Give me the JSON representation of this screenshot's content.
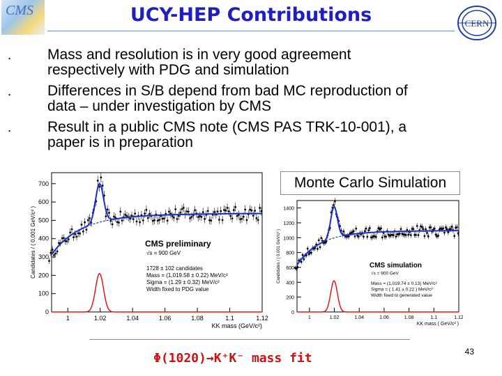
{
  "slide": {
    "title": "UCY-HEP Contributions",
    "logos": {
      "left_text": "CMS",
      "right_text": "CERN"
    },
    "bullets": [
      {
        "line1": "Mass and resolution is in very good agreement",
        "line2": "respectively with PDG and simulation"
      },
      {
        "line1": "Differences in S/B depend from bad MC reproduction of",
        "line2": "data – under investigation by CMS"
      },
      {
        "line1": "Result in a public CMS note (CMS PAS TRK-10-001), a",
        "line2": "paper is in preparation"
      }
    ],
    "mc_label": "Monte Carlo Simulation",
    "footer": "Φ(1020)→K⁺K⁻ mass fit",
    "page_number": "43",
    "colors": {
      "title": "#1f1fbf",
      "fit": "#1a2fd0",
      "signal": "#dd1a1a",
      "footer": "#cc1111"
    }
  },
  "chart_data": [
    {
      "type": "scatter",
      "title": "CMS preliminary",
      "xlabel": "KK mass (GeV/c²)",
      "ylabel": "Candidates / ( 0.001 GeV/c² )",
      "x_ticks": [
        "1",
        "1.02",
        "1.04",
        "1.06",
        "1.08",
        "1.1",
        "1.12"
      ],
      "y_ticks": [
        "0",
        "100",
        "200",
        "300",
        "400",
        "500",
        "600",
        "700"
      ],
      "xlim": [
        0.99,
        1.12
      ],
      "ylim": [
        0,
        760
      ],
      "annotations": [
        "√s = 900 GeV",
        "1728 ± 102  candidates",
        "Mass = (1,019.58 ± 0.22) MeV/c²",
        "Sigma = (1.29 ± 0.32) MeV/c²",
        "Width fixed to PDG value"
      ],
      "mass": 1.01958,
      "sigma": 0.00129,
      "peak_total": 700,
      "signal_peak": 210,
      "background": {
        "start": 280,
        "plateau": 530,
        "x0": 0.9873
      }
    },
    {
      "type": "scatter",
      "title": "CMS simulation",
      "xlabel": "KK mass ( GeV/c² )",
      "ylabel": "Candidates / ( 0.001 GeV/c² )",
      "x_ticks": [
        "1",
        "1.02",
        "1.04",
        "1.06",
        "1.08",
        "1.1",
        "1.12"
      ],
      "y_ticks": [
        "0",
        "200",
        "400",
        "600",
        "800",
        "1000",
        "1200",
        "1400"
      ],
      "xlim": [
        0.99,
        1.12
      ],
      "ylim": [
        0,
        1500
      ],
      "annotations": [
        "√s = 900 GeV",
        "Mass = (1,019.74 ± 0.13) MeV/c²",
        "Sigma = ( 1.41 ± 0.22 ) MeV/c²",
        "Width fixed to generated value"
      ],
      "mass": 1.01974,
      "sigma": 0.00141,
      "peak_total": 1380,
      "signal_peak": 420,
      "background": {
        "start": 560,
        "plateau": 1080,
        "x0": 0.9873
      }
    }
  ]
}
